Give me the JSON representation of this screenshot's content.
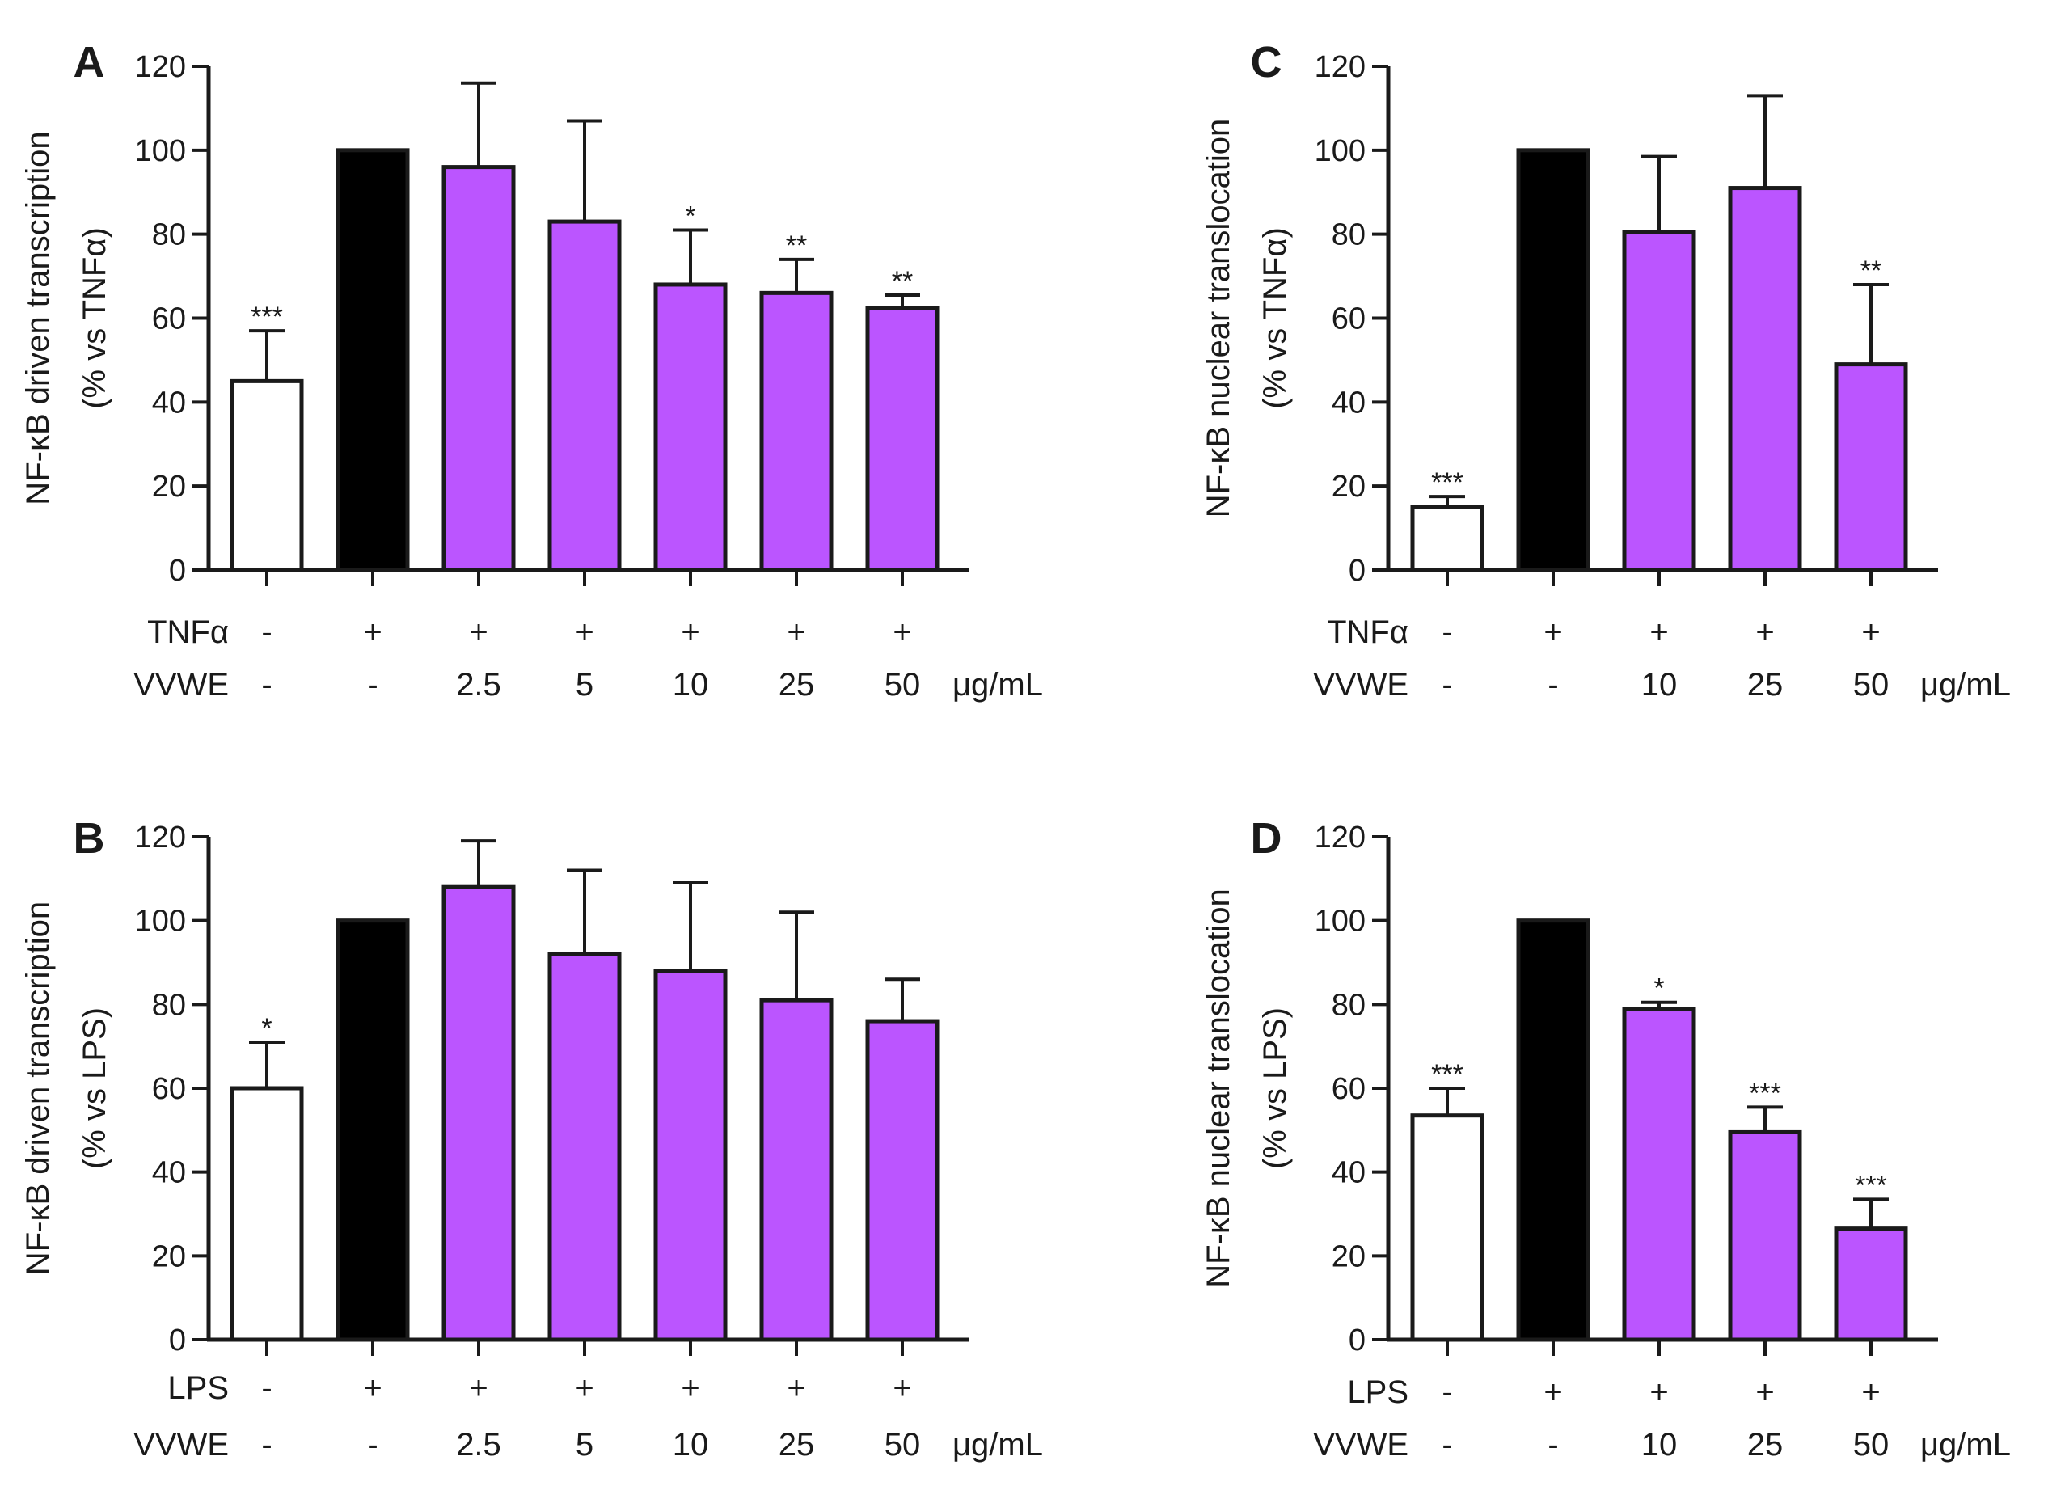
{
  "colors": {
    "control": "#ffffff",
    "stimulus": "#000000",
    "treatment": "#bb55ff",
    "ink": "#1a1a1a"
  },
  "chart_data": [
    {
      "id": "A",
      "type": "bar",
      "panel_label": "A",
      "ylabel_line1": "NF-κB driven transcription",
      "ylabel_line2": "(% vs TNFα)",
      "ylim": [
        0,
        120
      ],
      "yticks": [
        0,
        20,
        40,
        60,
        80,
        100,
        120
      ],
      "stimulus_label": "TNFα",
      "treatment_label": "VVWE",
      "unit": "μg/mL",
      "categories": [
        {
          "stim": "-",
          "dose": "-",
          "value": 45,
          "error": 12,
          "sig": "***",
          "kind": "control"
        },
        {
          "stim": "+",
          "dose": "-",
          "value": 100,
          "error": 0,
          "sig": "",
          "kind": "stimulus"
        },
        {
          "stim": "+",
          "dose": "2.5",
          "value": 96,
          "error": 20,
          "sig": "",
          "kind": "treatment"
        },
        {
          "stim": "+",
          "dose": "5",
          "value": 83,
          "error": 24,
          "sig": "",
          "kind": "treatment"
        },
        {
          "stim": "+",
          "dose": "10",
          "value": 68,
          "error": 13,
          "sig": "*",
          "kind": "treatment"
        },
        {
          "stim": "+",
          "dose": "25",
          "value": 66,
          "error": 8,
          "sig": "**",
          "kind": "treatment"
        },
        {
          "stim": "+",
          "dose": "50",
          "value": 62.5,
          "error": 3,
          "sig": "**",
          "kind": "treatment"
        }
      ]
    },
    {
      "id": "B",
      "type": "bar",
      "panel_label": "B",
      "ylabel_line1": "NF-κB driven transcription",
      "ylabel_line2": "(% vs LPS)",
      "ylim": [
        0,
        120
      ],
      "yticks": [
        0,
        20,
        40,
        60,
        80,
        100,
        120
      ],
      "stimulus_label": "LPS",
      "treatment_label": "VVWE",
      "unit": "μg/mL",
      "categories": [
        {
          "stim": "-",
          "dose": "-",
          "value": 60,
          "error": 11,
          "sig": "*",
          "kind": "control"
        },
        {
          "stim": "+",
          "dose": "-",
          "value": 100,
          "error": 0,
          "sig": "",
          "kind": "stimulus"
        },
        {
          "stim": "+",
          "dose": "2.5",
          "value": 108,
          "error": 11,
          "sig": "",
          "kind": "treatment"
        },
        {
          "stim": "+",
          "dose": "5",
          "value": 92,
          "error": 20,
          "sig": "",
          "kind": "treatment"
        },
        {
          "stim": "+",
          "dose": "10",
          "value": 88,
          "error": 21,
          "sig": "",
          "kind": "treatment"
        },
        {
          "stim": "+",
          "dose": "25",
          "value": 81,
          "error": 21,
          "sig": "",
          "kind": "treatment"
        },
        {
          "stim": "+",
          "dose": "50",
          "value": 76,
          "error": 10,
          "sig": "",
          "kind": "treatment"
        }
      ]
    },
    {
      "id": "C",
      "type": "bar",
      "panel_label": "C",
      "ylabel_line1": "NF-κB nuclear translocation",
      "ylabel_line2": "(% vs TNFα)",
      "ylim": [
        0,
        120
      ],
      "yticks": [
        0,
        20,
        40,
        60,
        80,
        100,
        120
      ],
      "stimulus_label": "TNFα",
      "treatment_label": "VVWE",
      "unit": "μg/mL",
      "categories": [
        {
          "stim": "-",
          "dose": "-",
          "value": 15,
          "error": 2.5,
          "sig": "***",
          "kind": "control"
        },
        {
          "stim": "+",
          "dose": "-",
          "value": 100,
          "error": 0,
          "sig": "",
          "kind": "stimulus"
        },
        {
          "stim": "+",
          "dose": "10",
          "value": 80.5,
          "error": 18,
          "sig": "",
          "kind": "treatment"
        },
        {
          "stim": "+",
          "dose": "25",
          "value": 91,
          "error": 22,
          "sig": "",
          "kind": "treatment"
        },
        {
          "stim": "+",
          "dose": "50",
          "value": 49,
          "error": 19,
          "sig": "**",
          "kind": "treatment"
        }
      ]
    },
    {
      "id": "D",
      "type": "bar",
      "panel_label": "D",
      "ylabel_line1": "NF-κB nuclear translocation",
      "ylabel_line2": "(% vs LPS)",
      "ylim": [
        0,
        120
      ],
      "yticks": [
        0,
        20,
        40,
        60,
        80,
        100,
        120
      ],
      "stimulus_label": "LPS",
      "treatment_label": "VVWE",
      "unit": "μg/mL",
      "categories": [
        {
          "stim": "-",
          "dose": "-",
          "value": 53.5,
          "error": 6.5,
          "sig": "***",
          "kind": "control"
        },
        {
          "stim": "+",
          "dose": "-",
          "value": 100,
          "error": 0,
          "sig": "",
          "kind": "stimulus"
        },
        {
          "stim": "+",
          "dose": "10",
          "value": 79,
          "error": 1.5,
          "sig": "*",
          "kind": "treatment"
        },
        {
          "stim": "+",
          "dose": "25",
          "value": 49.5,
          "error": 6,
          "sig": "***",
          "kind": "treatment"
        },
        {
          "stim": "+",
          "dose": "50",
          "value": 26.5,
          "error": 7,
          "sig": "***",
          "kind": "treatment"
        }
      ]
    }
  ]
}
